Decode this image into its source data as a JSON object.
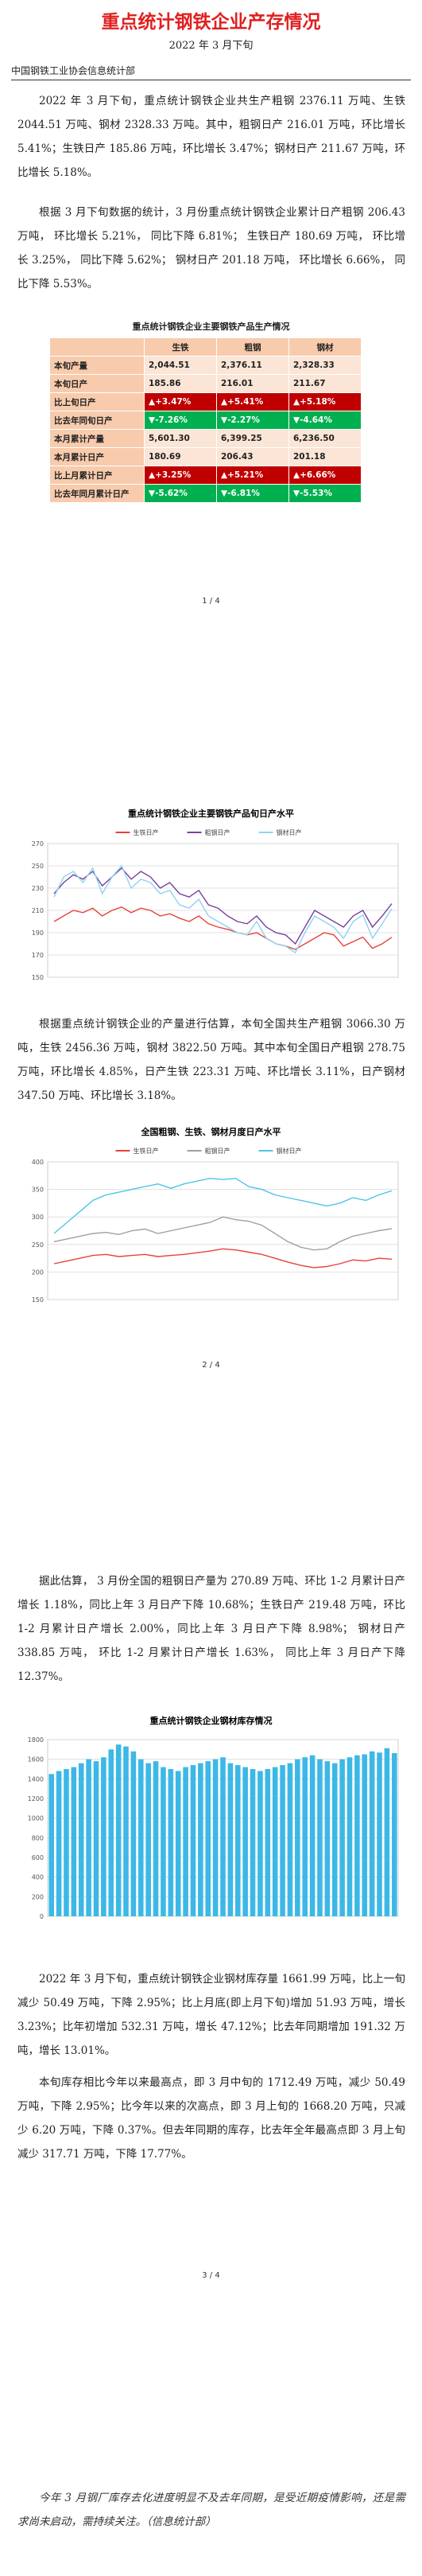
{
  "header": {
    "title": "重点统计钢铁企业产存情况",
    "date": "2022 年 3 月下旬",
    "department": "中国钢铁工业协会信息统计部"
  },
  "paragraphs": [
    "2022 年 3 月下旬，重点统计钢铁企业共生产粗钢 2376.11 万吨、生铁 2044.51 万吨、钢材 2328.33 万吨。其中，粗钢日产 216.01 万吨，环比增长 5.41%；生铁日产 185.86 万吨，环比增长 3.47%；钢材日产 211.67 万吨，环比增长 5.18%。",
    "根据 3 月下旬数据的统计，3 月份重点统计钢铁企业累计日产粗钢 206.43 万吨， 环比增长 5.21%， 同比下降 6.81%； 生铁日产 180.69 万吨， 环比增长 3.25%， 同比下降 5.62%； 钢材日产 201.18 万吨， 环比增长 6.66%， 同比下降 5.53%。",
    "根据重点统计钢铁企业的产量进行估算，本旬全国共生产粗钢 3066.30 万吨，生铁 2456.36 万吨，钢材 3822.50 万吨。其中本旬全国日产粗钢 278.75 万吨，环比增长 4.85%，日产生铁 223.31 万吨、环比增长 3.11%，日产钢材 347.50 万吨、环比增长 3.18%。",
    "据此估算， 3 月份全国的粗钢日产量为 270.89 万吨、环比 1-2 月累计日产增长 1.18%，同比上年 3 月日产下降 10.68%；生铁日产 219.48 万吨，环比 1-2 月累计日产增长 2.00%，同比上年 3 月日产下降 8.98%； 钢材日产 338.85 万吨， 环比 1-2 月累计日产增长 1.63%， 同比上年 3 月日产下降 12.37%。",
    "2022 年 3 月下旬，重点统计钢铁企业钢材库存量 1661.99 万吨，比上一旬减少 50.49 万吨，下降 2.95%；比上月底(即上月下旬)增加 51.93 万吨，增长 3.23%；比年初增加 532.31 万吨，增长 47.12%；比去年同期增加 191.32 万吨，增长 13.01%。",
    "本旬库存相比今年以来最高点，即 3 月中旬的 1712.49 万吨，减少 50.49 万吨，下降 2.95%；比今年以来的次高点，即 3 月上旬的 1668.20 万吨，只减少 6.20 万吨，下降 0.37%。但去年同期的库存，比去年全年最高点即 3 月上旬减少 317.71 万吨，下降 17.77%。",
    "今年 3 月钢厂库存去化进度明显不及去年同期，是受近期疫情影响，还是需求尚未启动，需持续关注。（信息统计部）"
  ],
  "table": {
    "title": "重点统计钢铁企业主要钢铁产品生产情况",
    "columns": [
      "生铁",
      "粗钢",
      "钢材"
    ],
    "rows": [
      [
        "本旬产量",
        "2,044.51",
        "2,376.11",
        "2,328.33"
      ],
      [
        "本旬日产",
        "185.86",
        "216.01",
        "211.67"
      ],
      [
        "比上旬日产",
        "▲+3.47%",
        "▲+5.41%",
        "▲+5.18%"
      ],
      [
        "比去年同旬日产",
        "▼-7.26%",
        "▼-2.27%",
        "▼-4.64%"
      ],
      [
        "本月累计产量",
        "5,601.30",
        "6,399.25",
        "6,236.50"
      ],
      [
        "本月累计日产",
        "180.69",
        "206.43",
        "201.18"
      ],
      [
        "比上月累计日产",
        "▲+3.25%",
        "▲+5.21%",
        "▲+6.66%"
      ],
      [
        "比去年同月累计日产",
        "▼-5.62%",
        "▼-6.81%",
        "▼-5.53%"
      ]
    ]
  },
  "page_numbers": [
    "1 / 4",
    "2 / 4",
    "3 / 4"
  ],
  "chart_data": [
    {
      "type": "line",
      "title": "重点统计钢铁企业主要钢铁产品旬日产水平",
      "categories": [
        null,
        null,
        null,
        null,
        null,
        null,
        null,
        null,
        null,
        null,
        null,
        null,
        null,
        null,
        null,
        null,
        null,
        null,
        null,
        null,
        null,
        null,
        null,
        null,
        null,
        null,
        null,
        null,
        null,
        null,
        null,
        null,
        null,
        null,
        null,
        null
      ],
      "series": [
        {
          "name": "生铁日产",
          "color": "#e8413c",
          "values": [
            200,
            205,
            210,
            208,
            212,
            205,
            210,
            213,
            208,
            212,
            210,
            205,
            207,
            203,
            200,
            205,
            198,
            195,
            193,
            190,
            188,
            190,
            185,
            180,
            178,
            175,
            180,
            185,
            190,
            188,
            178,
            182,
            186,
            176,
            180,
            185.86
          ]
        },
        {
          "name": "粗钢日产",
          "color": "#7b3f9e",
          "values": [
            225,
            235,
            242,
            238,
            245,
            232,
            240,
            248,
            238,
            245,
            240,
            230,
            235,
            225,
            222,
            228,
            215,
            212,
            205,
            200,
            198,
            205,
            195,
            190,
            188,
            180,
            195,
            210,
            205,
            200,
            195,
            205,
            210,
            195,
            205,
            216.01
          ]
        },
        {
          "name": "钢材日产",
          "color": "#8fd3f0",
          "values": [
            222,
            240,
            245,
            235,
            248,
            225,
            240,
            250,
            230,
            238,
            235,
            225,
            228,
            215,
            212,
            220,
            205,
            200,
            195,
            190,
            188,
            200,
            185,
            180,
            178,
            172,
            190,
            205,
            200,
            195,
            185,
            200,
            206,
            185,
            198,
            211.67
          ]
        }
      ],
      "ylim": [
        150,
        270
      ],
      "yticks": [
        150,
        170,
        190,
        210,
        230,
        250,
        270
      ],
      "grid": true,
      "legend": "top"
    },
    {
      "type": "line",
      "title": "全国粗钢、生铁、钢材月度日产水平",
      "categories": [
        null,
        null,
        null,
        null,
        null,
        null,
        null,
        null,
        null,
        null,
        null,
        null,
        null,
        null,
        null,
        null,
        null,
        null,
        null,
        null,
        null,
        null,
        null,
        null,
        null,
        null,
        null
      ],
      "series": [
        {
          "name": "生铁日产",
          "color": "#e8413c",
          "values": [
            215,
            220,
            225,
            230,
            232,
            228,
            230,
            232,
            228,
            230,
            232,
            235,
            238,
            242,
            240,
            236,
            232,
            225,
            218,
            212,
            208,
            210,
            215,
            222,
            220,
            225,
            223.31
          ]
        },
        {
          "name": "粗钢日产",
          "color": "#a0a0a0",
          "values": [
            255,
            260,
            265,
            270,
            272,
            268,
            275,
            278,
            270,
            275,
            280,
            285,
            290,
            300,
            295,
            292,
            285,
            270,
            255,
            245,
            240,
            242,
            255,
            265,
            270,
            275,
            278.75
          ]
        },
        {
          "name": "钢材日产",
          "color": "#4fc3e8",
          "values": [
            270,
            290,
            310,
            330,
            340,
            345,
            350,
            355,
            360,
            352,
            360,
            365,
            370,
            368,
            370,
            355,
            350,
            340,
            335,
            330,
            325,
            320,
            325,
            335,
            330,
            340,
            347.5
          ]
        }
      ],
      "ylim": [
        150,
        400
      ],
      "yticks": [
        150,
        200,
        250,
        300,
        350,
        400
      ],
      "grid": true,
      "legend": "top"
    },
    {
      "type": "bar",
      "title": "重点统计钢铁企业钢材库存情况",
      "categories": [
        null,
        null,
        null,
        null,
        null,
        null,
        null,
        null,
        null,
        null,
        null,
        null,
        null,
        null,
        null,
        null,
        null,
        null,
        null,
        null,
        null,
        null,
        null,
        null,
        null,
        null,
        null,
        null,
        null,
        null,
        null,
        null,
        null,
        null,
        null,
        null,
        null,
        null,
        null,
        null,
        null,
        null,
        null,
        null,
        null,
        null,
        null
      ],
      "values": [
        1450,
        1480,
        1500,
        1520,
        1560,
        1600,
        1580,
        1620,
        1700,
        1750,
        1730,
        1680,
        1600,
        1560,
        1580,
        1520,
        1500,
        1480,
        1520,
        1540,
        1560,
        1580,
        1600,
        1620,
        1560,
        1540,
        1520,
        1500,
        1480,
        1500,
        1520,
        1540,
        1560,
        1600,
        1620,
        1640,
        1600,
        1580,
        1560,
        1600,
        1620,
        1640,
        1650,
        1680,
        1668.2,
        1712.49,
        1661.99
      ],
      "color": "#3cb8e6",
      "ylim": [
        0,
        1800
      ],
      "yticks": [
        0,
        200,
        400,
        600,
        800,
        1000,
        1200,
        1400,
        1600,
        1800
      ],
      "grid": true
    }
  ]
}
